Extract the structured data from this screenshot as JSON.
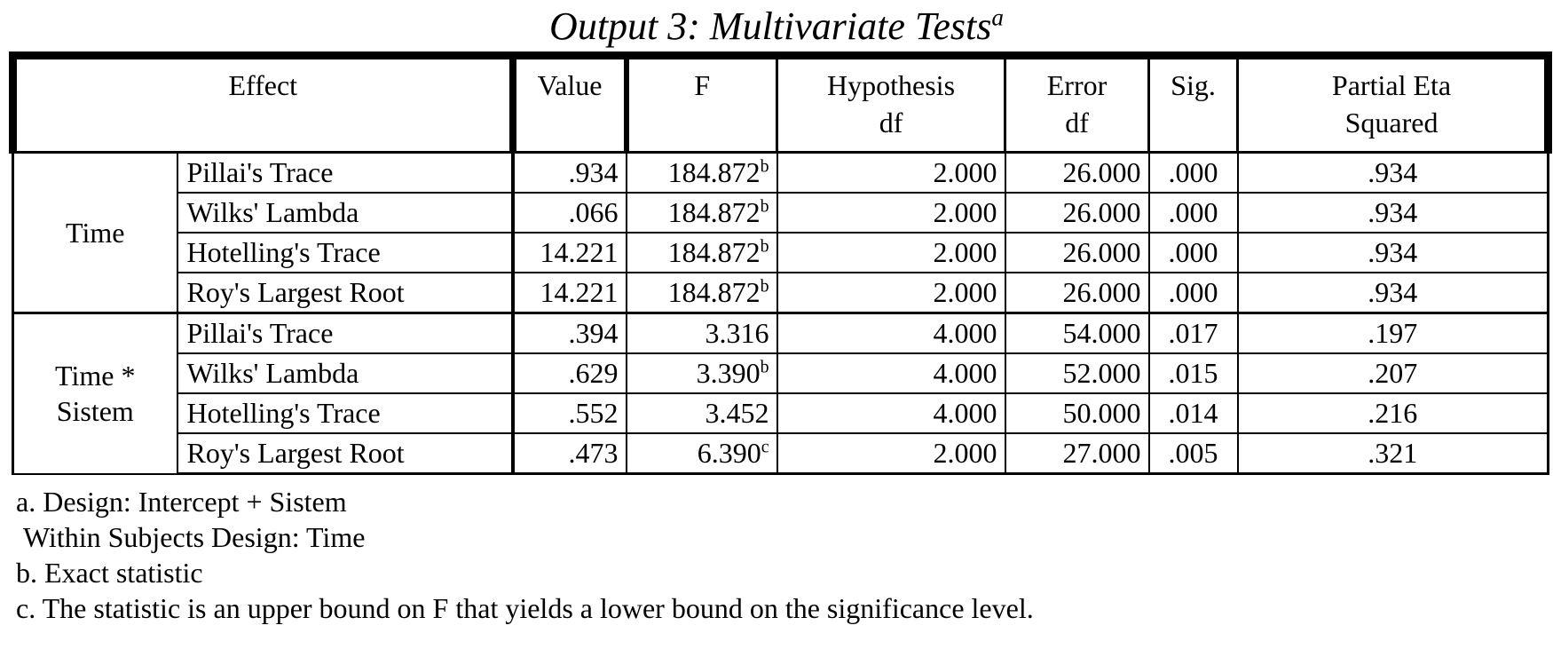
{
  "title": {
    "text": "Output 3: Multivariate Tests",
    "superscript": "a"
  },
  "table": {
    "headers": {
      "effect": "Effect",
      "value": "Value",
      "f": "F",
      "hypothesis_df": "Hypothesis\ndf",
      "error_df": "Error\ndf",
      "sig": "Sig.",
      "partial_eta_squared": "Partial Eta\nSquared"
    },
    "groups": [
      {
        "effect": "Time",
        "rows": [
          {
            "statistic": "Pillai's Trace",
            "value": ".934",
            "f": "184.872",
            "f_sup": "b",
            "hypothesis_df": "2.000",
            "error_df": "26.000",
            "sig": ".000",
            "partial_eta_squared": ".934"
          },
          {
            "statistic": "Wilks' Lambda",
            "value": ".066",
            "f": "184.872",
            "f_sup": "b",
            "hypothesis_df": "2.000",
            "error_df": "26.000",
            "sig": ".000",
            "partial_eta_squared": ".934"
          },
          {
            "statistic": "Hotelling's Trace",
            "value": "14.221",
            "f": "184.872",
            "f_sup": "b",
            "hypothesis_df": "2.000",
            "error_df": "26.000",
            "sig": ".000",
            "partial_eta_squared": ".934"
          },
          {
            "statistic": "Roy's Largest Root",
            "value": "14.221",
            "f": "184.872",
            "f_sup": "b",
            "hypothesis_df": "2.000",
            "error_df": "26.000",
            "sig": ".000",
            "partial_eta_squared": ".934"
          }
        ]
      },
      {
        "effect": "Time * Sistem",
        "rows": [
          {
            "statistic": "Pillai's Trace",
            "value": ".394",
            "f": "3.316",
            "f_sup": "",
            "hypothesis_df": "4.000",
            "error_df": "54.000",
            "sig": ".017",
            "partial_eta_squared": ".197"
          },
          {
            "statistic": "Wilks' Lambda",
            "value": ".629",
            "f": "3.390",
            "f_sup": "b",
            "hypothesis_df": "4.000",
            "error_df": "52.000",
            "sig": ".015",
            "partial_eta_squared": ".207"
          },
          {
            "statistic": "Hotelling's Trace",
            "value": ".552",
            "f": "3.452",
            "f_sup": "",
            "hypothesis_df": "4.000",
            "error_df": "50.000",
            "sig": ".014",
            "partial_eta_squared": ".216"
          },
          {
            "statistic": "Roy's Largest Root",
            "value": ".473",
            "f": "6.390",
            "f_sup": "c",
            "hypothesis_df": "2.000",
            "error_df": "27.000",
            "sig": ".005",
            "partial_eta_squared": ".321"
          }
        ]
      }
    ]
  },
  "footnotes": [
    "a. Design: Intercept + Sistem\n Within Subjects Design: Time",
    "b. Exact statistic",
    "c. The statistic is an upper bound on F that yields a lower bound on the significance level."
  ]
}
